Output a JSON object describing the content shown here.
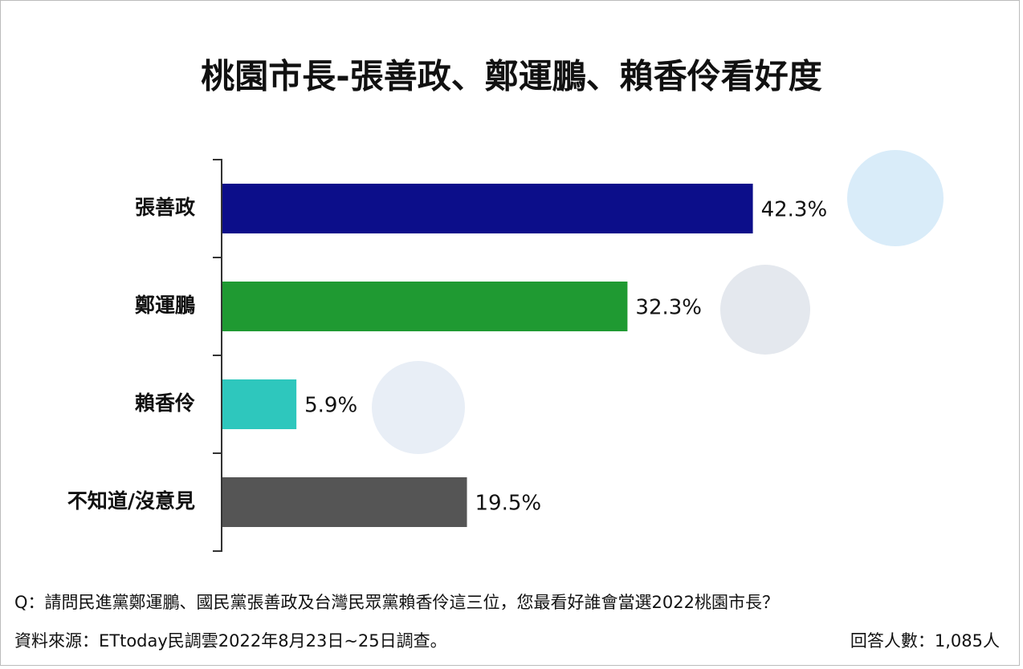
{
  "chart_data": {
    "type": "bar",
    "orientation": "horizontal",
    "title": "桃園市長-張善政、鄭運鵬、賴香伶看好度",
    "categories": [
      "張善政",
      "鄭運鵬",
      "賴香伶",
      "不知道/沒意見"
    ],
    "values": [
      42.3,
      32.3,
      5.9,
      19.5
    ],
    "value_labels": [
      "42.3%",
      "32.3%",
      "5.9%",
      "19.5%"
    ],
    "colors": [
      "#0c0e8a",
      "#1f9a32",
      "#2ec7bd",
      "#555555"
    ],
    "xlim": [
      0,
      60
    ],
    "question": "Q：請問民進黨鄭運鵬、國民黨張善政及台灣民眾黨賴香伶這三位，您最看好誰會當選2022桃園市長？",
    "source": "資料來源：ETtoday民調雲2022年8月23日~25日調查。",
    "respondents": "回答人數：1,085人"
  }
}
